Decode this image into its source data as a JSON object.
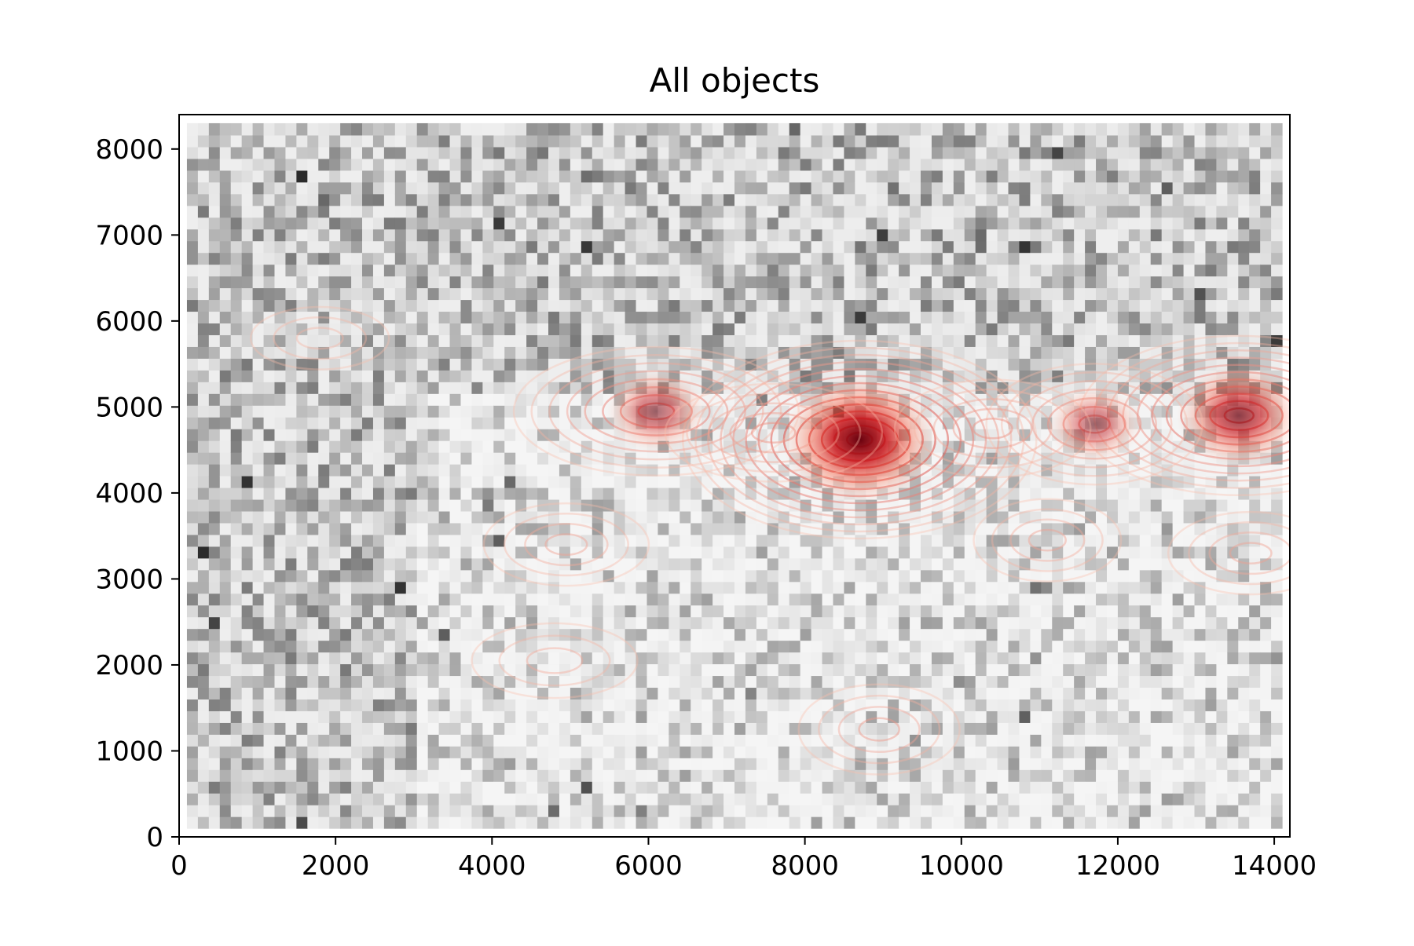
{
  "chart_data": {
    "type": "heatmap",
    "title": "All objects",
    "xlabel": "",
    "ylabel": "",
    "xlim": [
      0,
      14200
    ],
    "ylim": [
      0,
      8400
    ],
    "x_ticks": [
      0,
      2000,
      4000,
      6000,
      8000,
      10000,
      12000,
      14000
    ],
    "y_ticks": [
      0,
      1000,
      2000,
      3000,
      4000,
      5000,
      6000,
      7000,
      8000
    ],
    "grid": false,
    "legend": "none",
    "background_density": {
      "colormap": "greys",
      "x_range": [
        100,
        14100
      ],
      "y_range": [
        100,
        8300
      ],
      "denser_regions": [
        {
          "x": [
            100,
            14100
          ],
          "y": [
            5200,
            8300
          ]
        },
        {
          "x": [
            100,
            3000
          ],
          "y": [
            100,
            5200
          ]
        }
      ]
    },
    "contours": {
      "colormap": "reds",
      "peaks": [
        {
          "x": 8700,
          "y": 4620,
          "level": 1.0
        },
        {
          "x": 13550,
          "y": 4900,
          "level": 0.75
        },
        {
          "x": 6100,
          "y": 4950,
          "level": 0.55
        },
        {
          "x": 11700,
          "y": 4800,
          "level": 0.5
        },
        {
          "x": 10400,
          "y": 4750,
          "level": 0.35
        },
        {
          "x": 7600,
          "y": 4700,
          "level": 0.35
        },
        {
          "x": 8950,
          "y": 1250,
          "level": 0.3
        },
        {
          "x": 4950,
          "y": 3400,
          "level": 0.25
        },
        {
          "x": 4800,
          "y": 2050,
          "level": 0.2
        },
        {
          "x": 11100,
          "y": 3450,
          "level": 0.25
        },
        {
          "x": 13700,
          "y": 3300,
          "level": 0.25
        },
        {
          "x": 1800,
          "y": 5800,
          "level": 0.12
        }
      ]
    },
    "colors": {
      "axis": "#000000",
      "density_high": "#2b2b2b",
      "density_low": "#f7f7f7",
      "contour_low": "#fbd5c4",
      "contour_high": "#67000d"
    }
  }
}
